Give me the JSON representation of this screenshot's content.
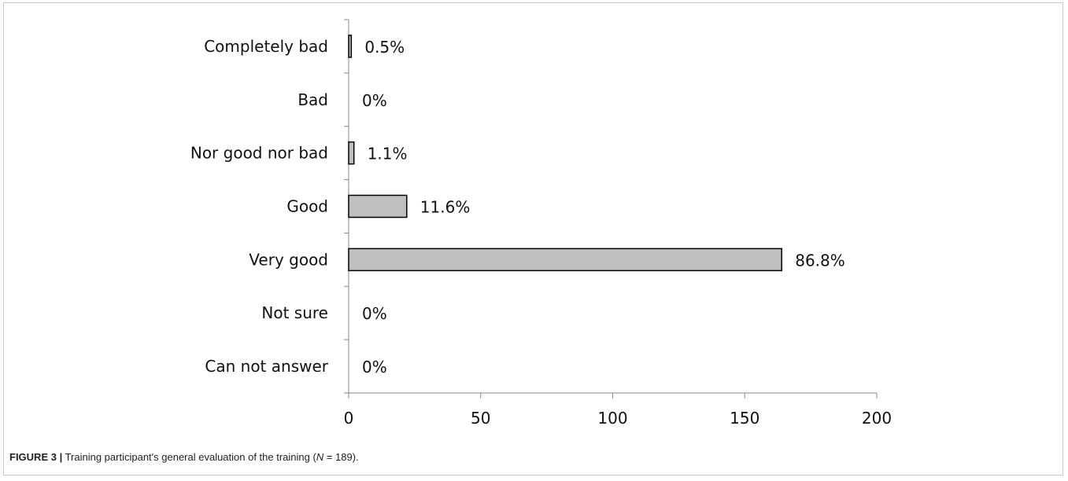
{
  "chart_data": {
    "type": "bar",
    "orientation": "horizontal",
    "categories": [
      "Completely bad",
      "Bad",
      "Nor good nor bad",
      "Good",
      "Very good",
      "Not sure",
      "Can not answer"
    ],
    "values": [
      1,
      0,
      2,
      22,
      164,
      0,
      0
    ],
    "data_labels": [
      "0.5%",
      "0%",
      "1.1%",
      "11.6%",
      "86.8%",
      "0%",
      "0%"
    ],
    "xlim": [
      0,
      200
    ],
    "xticks": [
      "0",
      "50",
      "100",
      "150",
      "200"
    ],
    "xtick_values": [
      0,
      50,
      100,
      150,
      200
    ],
    "bar_color": "#bfbfbf",
    "bar_edge_color": "#000000",
    "grid": false,
    "legend": "none",
    "title": "",
    "xlabel": "",
    "ylabel": ""
  },
  "caption": {
    "label": "FIGURE 3 |",
    "text_before": " Training participant's general evaluation of the training (",
    "n_symbol": "N",
    "text_after": " = 189)."
  }
}
